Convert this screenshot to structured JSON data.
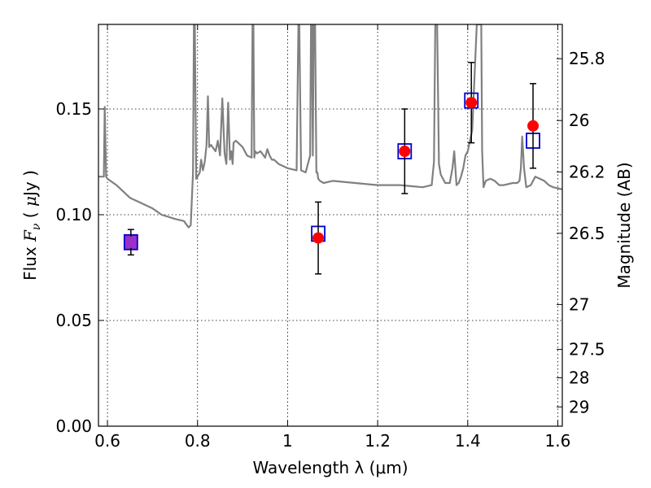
{
  "chart_data": {
    "type": "scatter",
    "xlabel": "Wavelength  λ (μm)",
    "ylabel": {
      "prefix": "Flux  ",
      "symbol": "F",
      "subscript": "ν",
      "open_paren": " ( ",
      "mu": "μ",
      "unit": "Jy )"
    },
    "y2label": "Magnitude (AB)",
    "xlim": [
      0.58,
      1.61
    ],
    "ylim": [
      0.0,
      0.19
    ],
    "grid": true,
    "x_ticks": [
      0.6,
      0.8,
      1.0,
      1.2,
      1.4,
      1.6
    ],
    "x_tick_labels": [
      "0.6",
      "0.8",
      "1",
      "1.2",
      "1.4",
      "1.6"
    ],
    "y_ticks": [
      0.0,
      0.05,
      0.1,
      0.15
    ],
    "y_tick_labels": [
      "0.00",
      "0.05",
      "0.10",
      "0.15"
    ],
    "y2_ticks": [
      25.8,
      26.0,
      26.2,
      26.5,
      27.0,
      27.5,
      28.0,
      29.0
    ],
    "y2_tick_labels": [
      "25.8",
      "26",
      "26.2",
      "26.5",
      "27",
      "27.5",
      "28",
      "29"
    ],
    "series": [
      {
        "kind": "line",
        "color": "#808080",
        "x": [
          0.58,
          0.592,
          0.594,
          0.597,
          0.6,
          0.62,
          0.65,
          0.67,
          0.7,
          0.72,
          0.75,
          0.77,
          0.78,
          0.785,
          0.79,
          0.792,
          0.794,
          0.797,
          0.8,
          0.805,
          0.808,
          0.812,
          0.816,
          0.82,
          0.823,
          0.826,
          0.83,
          0.84,
          0.845,
          0.85,
          0.855,
          0.86,
          0.864,
          0.868,
          0.872,
          0.875,
          0.878,
          0.88,
          0.885,
          0.89,
          0.9,
          0.91,
          0.92,
          0.922,
          0.924,
          0.926,
          0.928,
          0.932,
          0.94,
          0.95,
          0.955,
          0.96,
          0.965,
          0.97,
          0.98,
          1.0,
          1.02,
          1.024,
          1.026,
          1.03,
          1.04,
          1.05,
          1.052,
          1.054,
          1.056,
          1.058,
          1.061,
          1.064,
          1.066,
          1.068,
          1.072,
          1.08,
          1.1,
          1.15,
          1.2,
          1.25,
          1.3,
          1.32,
          1.325,
          1.328,
          1.332,
          1.336,
          1.34,
          1.35,
          1.36,
          1.366,
          1.37,
          1.375,
          1.38,
          1.385,
          1.39,
          1.395,
          1.4,
          1.41,
          1.42,
          1.427,
          1.43,
          1.432,
          1.435,
          1.44,
          1.45,
          1.46,
          1.47,
          1.48,
          1.5,
          1.51,
          1.515,
          1.518,
          1.521,
          1.525,
          1.53,
          1.54,
          1.55,
          1.56,
          1.57,
          1.58,
          1.59,
          1.61
        ],
        "y": [
          0.118,
          0.118,
          0.151,
          0.118,
          0.117,
          0.114,
          0.108,
          0.106,
          0.103,
          0.1,
          0.098,
          0.097,
          0.094,
          0.095,
          0.12,
          0.19,
          0.19,
          0.117,
          0.118,
          0.12,
          0.126,
          0.121,
          0.125,
          0.133,
          0.156,
          0.132,
          0.133,
          0.13,
          0.135,
          0.128,
          0.155,
          0.129,
          0.124,
          0.153,
          0.126,
          0.13,
          0.124,
          0.134,
          0.135,
          0.134,
          0.132,
          0.128,
          0.127,
          0.19,
          0.19,
          0.127,
          0.13,
          0.129,
          0.13,
          0.127,
          0.131,
          0.128,
          0.126,
          0.126,
          0.124,
          0.122,
          0.121,
          0.19,
          0.19,
          0.121,
          0.12,
          0.128,
          0.19,
          0.19,
          0.128,
          0.19,
          0.19,
          0.12,
          0.12,
          0.117,
          0.116,
          0.115,
          0.116,
          0.115,
          0.114,
          0.114,
          0.113,
          0.114,
          0.125,
          0.19,
          0.19,
          0.124,
          0.119,
          0.115,
          0.115,
          0.122,
          0.13,
          0.114,
          0.115,
          0.118,
          0.122,
          0.128,
          0.13,
          0.14,
          0.19,
          0.19,
          0.19,
          0.13,
          0.113,
          0.116,
          0.117,
          0.116,
          0.114,
          0.114,
          0.115,
          0.115,
          0.116,
          0.122,
          0.137,
          0.122,
          0.113,
          0.114,
          0.118,
          0.117,
          0.116,
          0.114,
          0.113,
          0.112
        ]
      },
      {
        "kind": "model_points",
        "color": "#0000cc",
        "x": [
          0.652,
          1.068,
          1.26,
          1.408,
          1.545
        ],
        "y": [
          0.087,
          0.091,
          0.13,
          0.154,
          0.135
        ]
      },
      {
        "kind": "observed_points",
        "color": "#ff0000",
        "x": [
          0.652,
          1.068,
          1.26,
          1.408,
          1.545
        ],
        "y": [
          0.087,
          0.089,
          0.13,
          0.153,
          0.142
        ],
        "yerr": [
          0.006,
          0.017,
          0.02,
          0.019,
          0.02
        ]
      }
    ],
    "overlap_color": "#9b30c8"
  }
}
